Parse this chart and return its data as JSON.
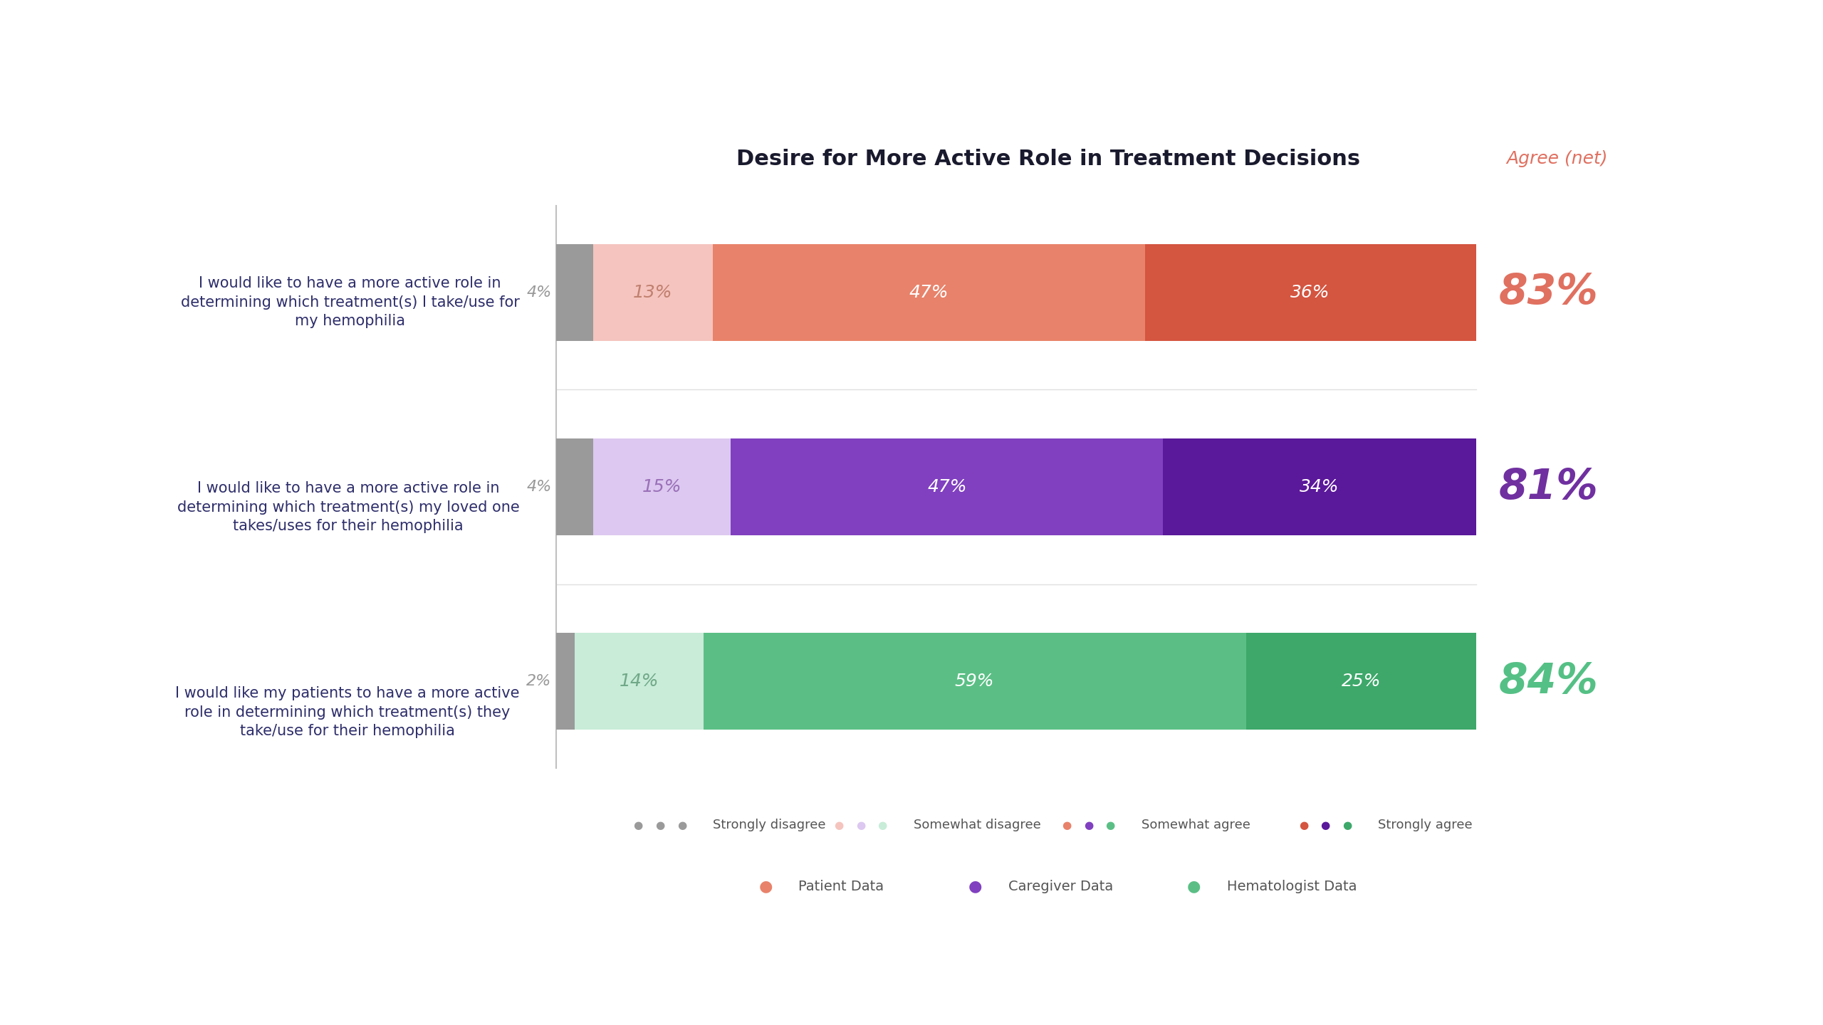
{
  "title": "Desire for More Active Role in Treatment Decisions",
  "agree_net_label": "Agree (net)",
  "background_color": "#ffffff",
  "rows": [
    {
      "label": "I would like to have a more active role in\ndetermining which treatment(s) I take/use for\nmy hemophilia",
      "segments": [
        4,
        13,
        47,
        36
      ],
      "agree_net": "83%",
      "seg_colors": [
        "#9a9a9a",
        "#f5c4be",
        "#e8826a",
        "#d45540"
      ],
      "agree_net_color": "#e07060",
      "pct_colors": [
        "#9a9a9a",
        "#c08070",
        "#ffffff",
        "#ffffff"
      ]
    },
    {
      "label": "I would like to have a more active role in\ndetermining which treatment(s) my loved one\ntakes/uses for their hemophilia",
      "segments": [
        4,
        15,
        47,
        34
      ],
      "agree_net": "81%",
      "seg_colors": [
        "#9a9a9a",
        "#dcc8f0",
        "#8040c0",
        "#5a189a"
      ],
      "agree_net_color": "#7030a0",
      "pct_colors": [
        "#9a9a9a",
        "#9a70b8",
        "#ffffff",
        "#ffffff"
      ]
    },
    {
      "label": "I would like my patients to have a more active\nrole in determining which treatment(s) they\ntake/use for their hemophilia",
      "segments": [
        2,
        14,
        59,
        25
      ],
      "agree_net": "84%",
      "seg_colors": [
        "#9a9a9a",
        "#c8ecd8",
        "#5bbf85",
        "#3da86a"
      ],
      "agree_net_color": "#55c085",
      "pct_colors": [
        "#9a9a9a",
        "#70a888",
        "#ffffff",
        "#ffffff"
      ]
    }
  ],
  "legend1_items": [
    {
      "label": "Strongly disagree",
      "dots": [
        "#9a9a9a",
        "#9a9a9a",
        "#9a9a9a"
      ]
    },
    {
      "label": "Somewhat disagree",
      "dots": [
        "#f5c4be",
        "#dcc8f0",
        "#c8ecd8"
      ]
    },
    {
      "label": "Somewhat agree",
      "dots": [
        "#e8826a",
        "#8040c0",
        "#5bbf85"
      ]
    },
    {
      "label": "Strongly agree",
      "dots": [
        "#d45540",
        "#5a189a",
        "#3da86a"
      ]
    }
  ],
  "legend2_items": [
    {
      "label": "Patient Data",
      "color": "#e8826a"
    },
    {
      "label": "Caregiver Data",
      "color": "#8040c0"
    },
    {
      "label": "Hematologist Data",
      "color": "#5bbf85"
    }
  ]
}
